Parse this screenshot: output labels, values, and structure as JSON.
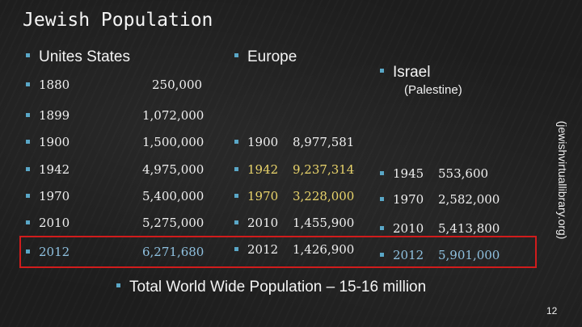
{
  "slide": {
    "title": "Jewish Population",
    "source_note": "(jewishvirtuallibrary.org)",
    "page_number": "12",
    "highlight_color": "#d11c1c",
    "accent_color": "#5aa7c7"
  },
  "columns": {
    "us": {
      "header": "Unites States",
      "rows": [
        {
          "year": "1880",
          "value": "250,000"
        },
        {
          "year": "1899",
          "value": "1,072,000"
        },
        {
          "year": "1900",
          "value": "1,500,000"
        },
        {
          "year": "1942",
          "value": "4,975,000"
        },
        {
          "year": "1970",
          "value": "5,400,000"
        },
        {
          "year": "2010",
          "value": "5,275,000"
        },
        {
          "year": "2012",
          "value": "6,271,680"
        }
      ]
    },
    "europe": {
      "header": "Europe",
      "rows": [
        {
          "year": "1900",
          "value": "8,977,581"
        },
        {
          "year": "1942",
          "value": "9,237,314"
        },
        {
          "year": "1970",
          "value": "3,228,000"
        },
        {
          "year": "2010",
          "value": "1,455,900"
        },
        {
          "year": "2012",
          "value": "1,426,900"
        }
      ]
    },
    "israel": {
      "header": "Israel",
      "subheader": "(Palestine)",
      "rows": [
        {
          "year": "1945",
          "value": "553,600"
        },
        {
          "year": "1970",
          "value": "2,582,000"
        },
        {
          "year": "2010",
          "value": "5,413,800"
        },
        {
          "year": "2012",
          "value": "5,901,000"
        }
      ]
    }
  },
  "footer": {
    "total_text": "Total World Wide Population – 15-16 million"
  }
}
